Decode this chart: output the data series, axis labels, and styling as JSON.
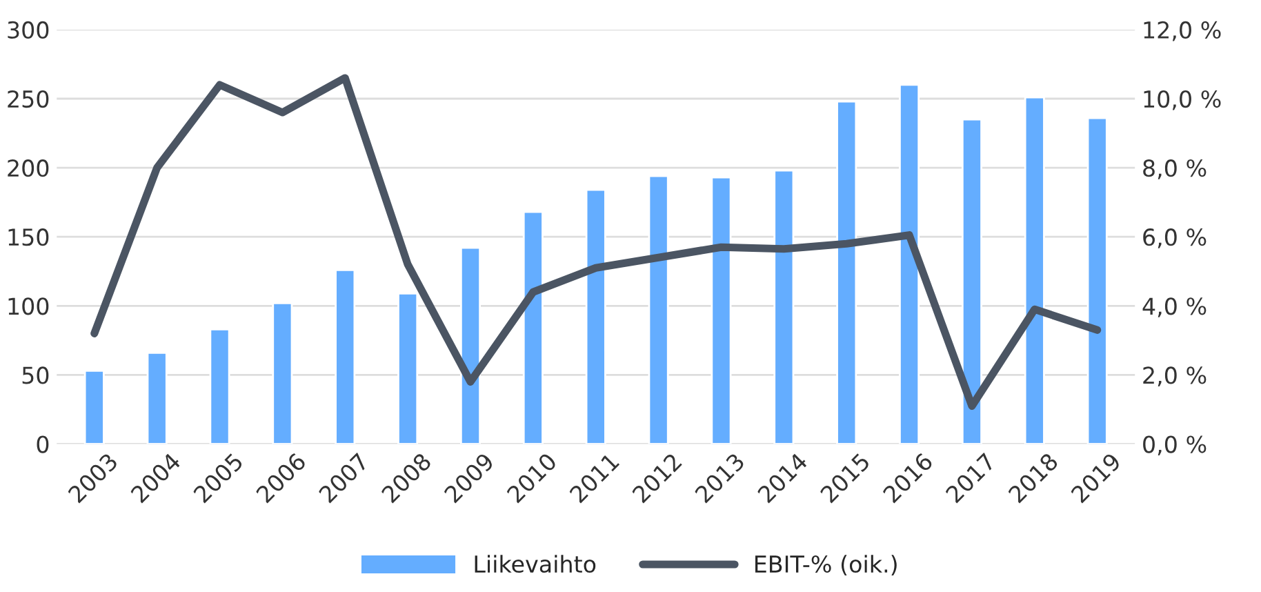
{
  "chart_data": {
    "type": "bar",
    "categories": [
      "2003",
      "2004",
      "2005",
      "2006",
      "2007",
      "2008",
      "2009",
      "2010",
      "2011",
      "2012",
      "2013",
      "2014",
      "2015",
      "2016",
      "2017",
      "2018",
      "2019"
    ],
    "series": [
      {
        "name": "Liikevaihto",
        "color": "#64adff",
        "values": [
          53,
          66,
          83,
          102,
          126,
          109,
          142,
          168,
          184,
          194,
          193,
          198,
          248,
          260,
          235,
          251,
          236
        ]
      },
      {
        "name": "EBIT-% (oik.)",
        "type": "line",
        "axis": "y2",
        "color": "#4b5563",
        "values": [
          3.2,
          8.0,
          10.4,
          9.6,
          10.6,
          5.2,
          1.8,
          4.4,
          5.1,
          5.4,
          5.7,
          5.65,
          5.8,
          6.05,
          1.1,
          3.9,
          3.3
        ]
      }
    ],
    "ylim": [
      0,
      300
    ],
    "yticks": [
      0,
      50,
      100,
      150,
      200,
      250,
      300
    ],
    "y2lim": [
      0,
      12
    ],
    "y2ticks": [
      {
        "value": 0,
        "label": "0,0 %"
      },
      {
        "value": 2,
        "label": "2,0 %"
      },
      {
        "value": 4,
        "label": "4,0 %"
      },
      {
        "value": 6,
        "label": "6,0 %"
      },
      {
        "value": 8,
        "label": "8,0 %"
      },
      {
        "value": 10,
        "label": "10,0 %"
      },
      {
        "value": 12,
        "label": "12,0 %"
      }
    ],
    "grid": "y",
    "legend": "bottom",
    "marker": "none",
    "line_style": "solid"
  }
}
